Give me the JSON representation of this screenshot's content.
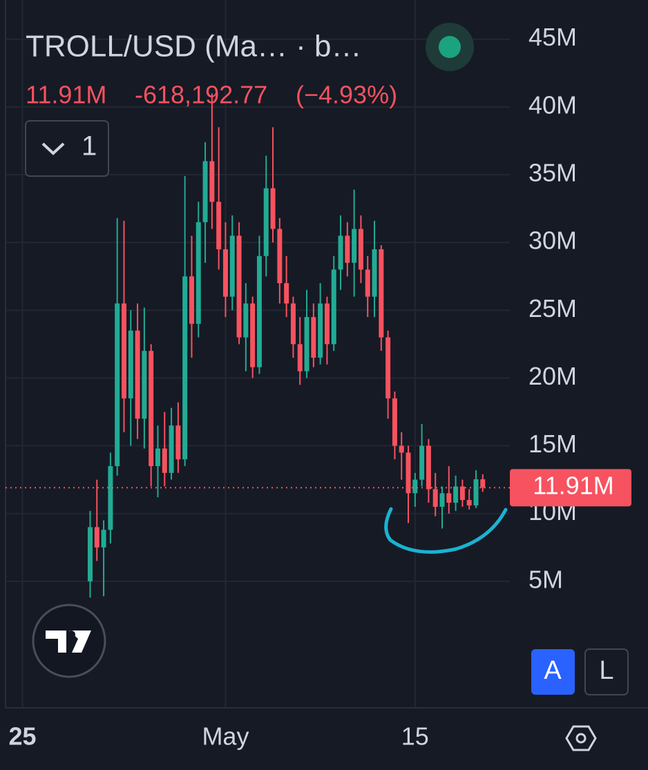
{
  "header": {
    "title": "TROLL/USD (Ma… · b…",
    "interval_button": "1"
  },
  "chart_data": {
    "type": "candlestick",
    "up_color": "#22ab94",
    "down_color": "#f7525f",
    "open": [
      5000000.0,
      9000000.0,
      7500000.0,
      8800000.0,
      13500000.0,
      25500000.0,
      18500000.0,
      23500000.0,
      17000000.0,
      22000000.0,
      13500000.0,
      14800000.0,
      13000000.0,
      16500000.0,
      14000000.0,
      27500000.0,
      24000000.0,
      31500000.0,
      36000000.0,
      33000000.0,
      29500000.0,
      26000000.0,
      30500000.0,
      23000000.0,
      25500000.0,
      20800000.0,
      29000000.0,
      34000000.0,
      31000000.0,
      27000000.0,
      25500000.0,
      22500000.0,
      20500000.0,
      24500000.0,
      21500000.0,
      25500000.0,
      22500000.0,
      28000000.0,
      30500000.0,
      28500000.0,
      31000000.0,
      28000000.0,
      26000000.0,
      29500000.0,
      23000000.0,
      18500000.0,
      15000000.0,
      14500000.0,
      11500000.0,
      12500000.0,
      15000000.0,
      11800000.0,
      10500000.0,
      11500000.0,
      10800000.0,
      12000000.0,
      11000000.0,
      10600000.0,
      12530000.0
    ],
    "high": [
      10200000.0,
      12500000.0,
      9500000.0,
      14500000.0,
      31800000.0,
      31600000.0,
      25000000.0,
      25500000.0,
      25200000.0,
      22500000.0,
      16500000.0,
      17500000.0,
      17800000.0,
      18200000.0,
      34900000.0,
      30500000.0,
      33000000.0,
      37400000.0,
      41000000.0,
      38500000.0,
      31500000.0,
      32000000.0,
      31500000.0,
      27000000.0,
      26000000.0,
      30500000.0,
      36400000.0,
      38500000.0,
      31800000.0,
      29000000.0,
      26000000.0,
      24500000.0,
      26500000.0,
      25500000.0,
      27000000.0,
      26000000.0,
      29000000.0,
      32000000.0,
      31500000.0,
      33900000.0,
      32000000.0,
      29000000.0,
      31600000.0,
      29800000.0,
      23500000.0,
      19000000.0,
      16000000.0,
      15000000.0,
      13000000.0,
      16600000.0,
      15500000.0,
      13000000.0,
      12000000.0,
      13500000.0,
      12800000.0,
      12500000.0,
      11800000.0,
      13200000.0,
      12900000.0
    ],
    "low": [
      3800000.0,
      6500000.0,
      3900000.0,
      7800000.0,
      12800000.0,
      16000000.0,
      15000000.0,
      15500000.0,
      14800000.0,
      12000000.0,
      11200000.0,
      12000000.0,
      12500000.0,
      13000000.0,
      13500000.0,
      21500000.0,
      23000000.0,
      28500000.0,
      31000000.0,
      28000000.0,
      24500000.0,
      25000000.0,
      22500000.0,
      20500000.0,
      20000000.0,
      20300000.0,
      27500000.0,
      30000000.0,
      25500000.0,
      24500000.0,
      21500000.0,
      19500000.0,
      20000000.0,
      20800000.0,
      21000000.0,
      21000000.0,
      22000000.0,
      26500000.0,
      27500000.0,
      26000000.0,
      27000000.0,
      24500000.0,
      24500000.0,
      22000000.0,
      17000000.0,
      14000000.0,
      12500000.0,
      9300000.0,
      10500000.0,
      12000000.0,
      10800000.0,
      9800000.0,
      8900000.0,
      10000000.0,
      10200000.0,
      10500000.0,
      10300000.0,
      10400000.0,
      11600000.0
    ],
    "close": [
      9000000.0,
      7500000.0,
      8800000.0,
      13500000.0,
      25500000.0,
      18500000.0,
      23500000.0,
      17000000.0,
      22000000.0,
      13500000.0,
      14800000.0,
      13000000.0,
      16500000.0,
      14000000.0,
      27500000.0,
      24000000.0,
      31500000.0,
      36000000.0,
      33000000.0,
      29500000.0,
      26000000.0,
      30500000.0,
      23000000.0,
      25500000.0,
      20800000.0,
      29000000.0,
      34000000.0,
      31000000.0,
      27000000.0,
      25500000.0,
      22500000.0,
      20500000.0,
      24500000.0,
      21500000.0,
      25500000.0,
      22500000.0,
      28000000.0,
      30500000.0,
      28500000.0,
      31000000.0,
      28000000.0,
      26000000.0,
      29500000.0,
      23000000.0,
      18500000.0,
      15000000.0,
      14500000.0,
      11500000.0,
      12500000.0,
      15000000.0,
      11800000.0,
      10500000.0,
      11500000.0,
      10800000.0,
      12000000.0,
      11000000.0,
      10600000.0,
      12530000.0,
      11910000.0
    ],
    "last_price": {
      "value": 11910000,
      "label": "11.91M"
    },
    "change": {
      "value": -618192.77,
      "label": "-618,192.77"
    },
    "change_percent": {
      "value": -4.93,
      "label": "(−4.93%)"
    },
    "ylim": [
      -4180000,
      47890000
    ],
    "yticks": [
      {
        "value": 5000000,
        "label": "5M"
      },
      {
        "value": 10000000,
        "label": "10M"
      },
      {
        "value": 15000000,
        "label": "15M"
      },
      {
        "value": 20000000,
        "label": "20M"
      },
      {
        "value": 25000000,
        "label": "25M"
      },
      {
        "value": 30000000,
        "label": "30M"
      },
      {
        "value": 35000000,
        "label": "35M"
      },
      {
        "value": 40000000,
        "label": "40M"
      },
      {
        "value": 45000000,
        "label": "45M"
      }
    ],
    "xlim": [
      -12.5,
      62
    ],
    "xticks": [
      {
        "value": -10,
        "label": "25"
      },
      {
        "value": 20,
        "label": "May"
      },
      {
        "value": 48,
        "label": "15"
      }
    ],
    "grid": true
  },
  "controls": {
    "auto": "A",
    "log": "L"
  }
}
